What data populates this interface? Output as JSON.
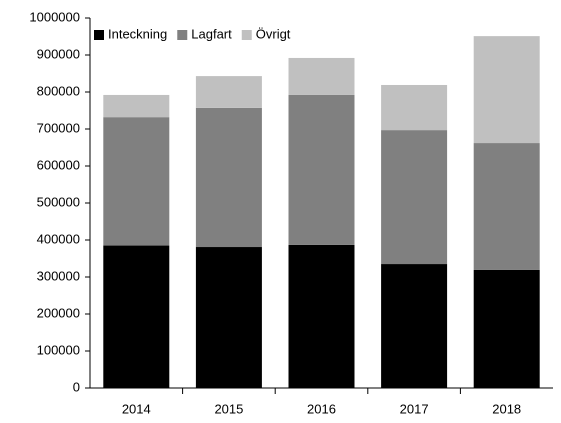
{
  "chart_data": {
    "type": "stacked_bar",
    "categories": [
      "2014",
      "2015",
      "2016",
      "2017",
      "2018"
    ],
    "series": [
      {
        "name": "Inteckning",
        "color": "#000000",
        "values": [
          385000,
          381000,
          387000,
          335000,
          319000
        ]
      },
      {
        "name": "Lagfart",
        "color": "#808080",
        "values": [
          347000,
          376000,
          405000,
          362000,
          343000
        ]
      },
      {
        "name": "Övrigt",
        "color": "#c0c0c0",
        "values": [
          60000,
          86000,
          100000,
          122000,
          289000
        ]
      }
    ],
    "ylim": [
      0,
      1000000
    ],
    "yticks": [
      0,
      100000,
      200000,
      300000,
      400000,
      500000,
      600000,
      700000,
      800000,
      900000,
      1000000
    ],
    "grid": false,
    "legend": "top-left"
  }
}
